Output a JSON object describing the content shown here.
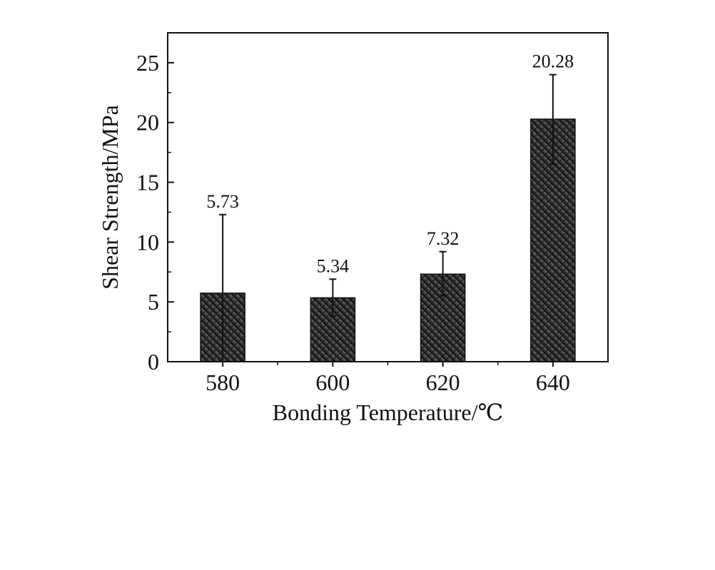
{
  "chart_data": {
    "type": "bar",
    "categories": [
      "580",
      "600",
      "620",
      "640"
    ],
    "values": [
      5.73,
      5.34,
      7.32,
      20.28
    ],
    "error_bars": {
      "upper": [
        12.3,
        6.9,
        9.2,
        24.0
      ],
      "lower": [
        0.0,
        3.8,
        5.5,
        16.5
      ]
    },
    "data_labels": [
      "5.73",
      "5.34",
      "7.32",
      "20.28"
    ],
    "title": "",
    "xlabel": "Bonding Temperature/℃",
    "ylabel": "Shear Strength/MPa",
    "ylim": [
      0,
      27.5
    ],
    "yticks": [
      "0",
      "5",
      "10",
      "15",
      "20",
      "25"
    ],
    "grid": false,
    "legend": "none",
    "bar_fill": "diagonal-hatch",
    "bar_colors": {
      "top": "#6a6a6a",
      "bottom": "#050505",
      "hatch": "#2a2a2a"
    },
    "axis_color": "#111111"
  }
}
